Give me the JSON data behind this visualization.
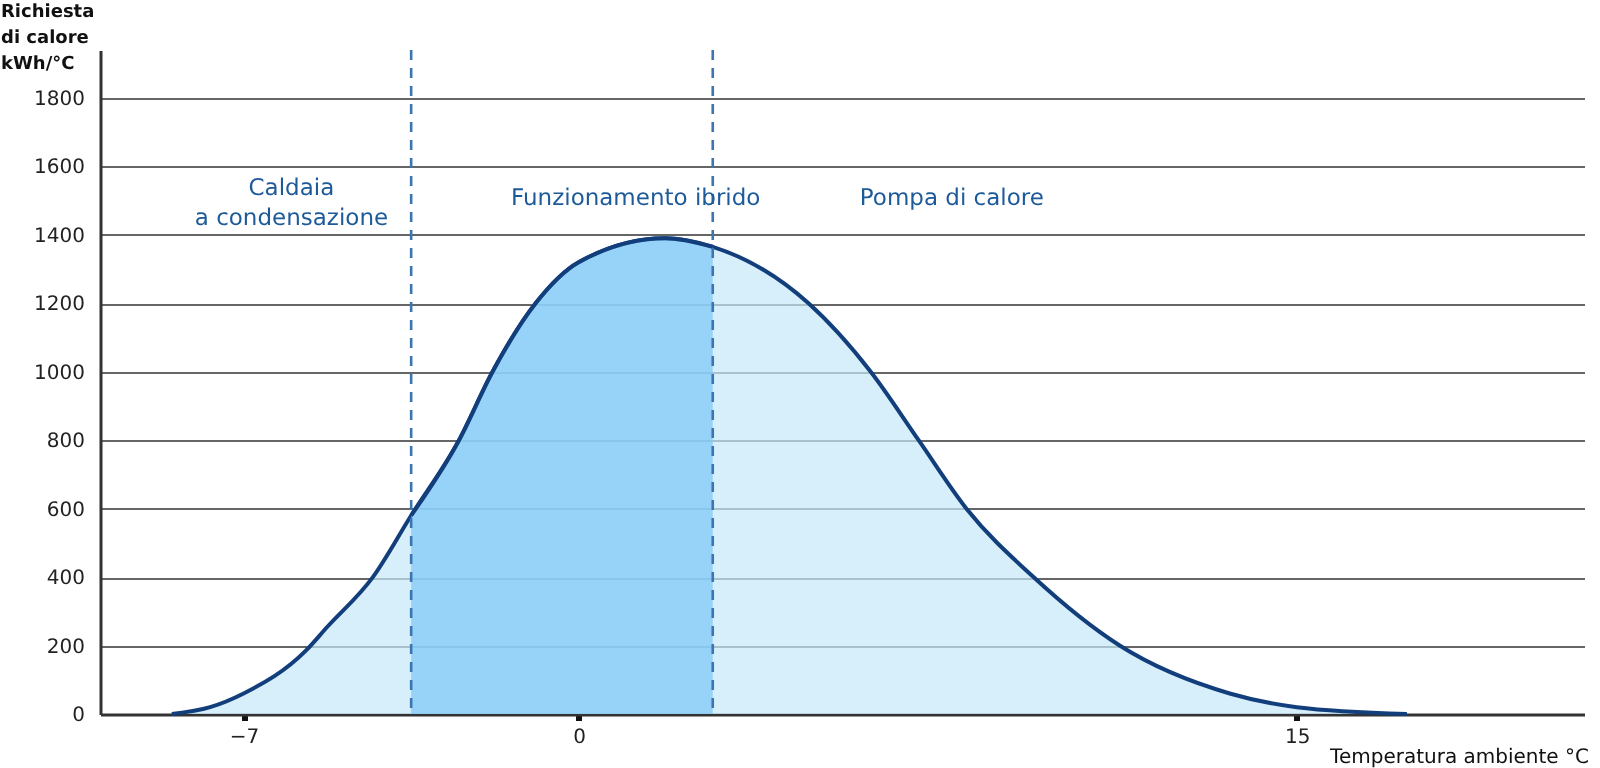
{
  "chart_data": {
    "type": "area",
    "xlabel": "Temperatura ambiente °C",
    "ylabel": "Richiesta\ndi calore\nkWh/°C",
    "x": [
      -8.5,
      -7.7,
      -7,
      -5.7,
      -5.25,
      -4.3,
      -3.5,
      -2.5,
      -1.8,
      -0.9,
      0,
      1.8,
      2.8,
      4.8,
      6.1,
      7.1,
      8.1,
      9.5,
      11.3,
      13.6,
      15,
      17.3
    ],
    "series": [
      {
        "color": "#c6e8fa",
        "values": [
          0,
          20,
          60,
          185,
          255,
          400,
          580,
          800,
          1000,
          1200,
          1320,
          1390,
          1365,
          1200,
          1000,
          800,
          600,
          400,
          200,
          60,
          20,
          0
        ]
      },
      {
        "color": "#7cc8f8",
        "x": [
          -3.5,
          -2.5,
          -1.8,
          -0.9,
          0,
          1.8,
          2.8
        ],
        "values": [
          580,
          800,
          1000,
          1200,
          1320,
          1390,
          1365
        ]
      }
    ],
    "xlim": [
      -10,
      21
    ],
    "xticks": [
      -7,
      0,
      15
    ],
    "ylim": [
      0,
      1940
    ],
    "yticks": [
      0,
      200,
      400,
      600,
      800,
      1000,
      1200,
      1400,
      1600,
      1800
    ],
    "grid": "y",
    "ref_lines": [
      {
        "axis": "x",
        "value": -3.5,
        "color": "#3b76b0",
        "line_style": "dashed"
      },
      {
        "axis": "x",
        "value": 2.8,
        "color": "#3b76b0",
        "line_style": "dashed"
      }
    ],
    "annotations": [
      "Caldaia\na condensazione",
      "Funzionamento ibrido",
      "Pompa di calore"
    ]
  }
}
